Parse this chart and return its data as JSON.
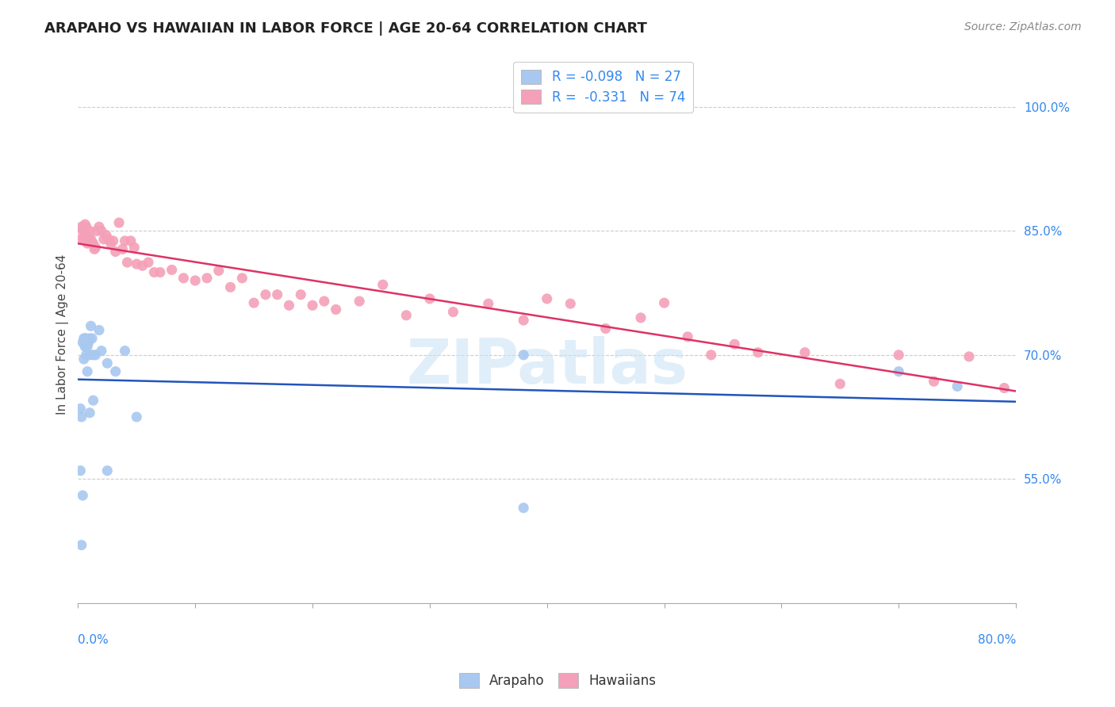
{
  "title": "ARAPAHO VS HAWAIIAN IN LABOR FORCE | AGE 20-64 CORRELATION CHART",
  "source": "Source: ZipAtlas.com",
  "ylabel": "In Labor Force | Age 20-64",
  "ytick_labels": [
    "100.0%",
    "85.0%",
    "70.0%",
    "55.0%"
  ],
  "ytick_values": [
    1.0,
    0.85,
    0.7,
    0.55
  ],
  "legend_line1": "R = -0.098   N = 27",
  "legend_line2": "R =  -0.331   N = 74",
  "legend_labels": [
    "Arapaho",
    "Hawaiians"
  ],
  "arapaho_color": "#a8c8f0",
  "hawaiian_color": "#f4a0b8",
  "arapaho_line_color": "#2255bb",
  "hawaiian_line_color": "#dd3366",
  "watermark": "ZIPatlas",
  "arapaho_x": [
    0.002,
    0.003,
    0.004,
    0.005,
    0.005,
    0.006,
    0.006,
    0.007,
    0.007,
    0.008,
    0.008,
    0.009,
    0.01,
    0.01,
    0.011,
    0.012,
    0.013,
    0.015,
    0.018,
    0.02,
    0.025,
    0.032,
    0.04,
    0.05,
    0.38,
    0.7,
    0.75
  ],
  "arapaho_y": [
    0.635,
    0.625,
    0.715,
    0.695,
    0.72,
    0.72,
    0.71,
    0.72,
    0.7,
    0.71,
    0.68,
    0.715,
    0.72,
    0.7,
    0.735,
    0.72,
    0.7,
    0.7,
    0.73,
    0.705,
    0.69,
    0.68,
    0.705,
    0.625,
    0.7,
    0.68,
    0.662
  ],
  "hawaiian_x": [
    0.002,
    0.003,
    0.004,
    0.005,
    0.005,
    0.006,
    0.006,
    0.007,
    0.008,
    0.009,
    0.01,
    0.01,
    0.011,
    0.012,
    0.013,
    0.014,
    0.015,
    0.016,
    0.018,
    0.02,
    0.022,
    0.024,
    0.026,
    0.028,
    0.03,
    0.032,
    0.035,
    0.038,
    0.04,
    0.042,
    0.045,
    0.048,
    0.05,
    0.055,
    0.06,
    0.065,
    0.07,
    0.08,
    0.09,
    0.1,
    0.11,
    0.12,
    0.13,
    0.14,
    0.15,
    0.16,
    0.17,
    0.18,
    0.19,
    0.2,
    0.21,
    0.22,
    0.24,
    0.26,
    0.28,
    0.3,
    0.32,
    0.35,
    0.38,
    0.4,
    0.42,
    0.45,
    0.48,
    0.5,
    0.52,
    0.54,
    0.56,
    0.58,
    0.62,
    0.65,
    0.7,
    0.73,
    0.76,
    0.79
  ],
  "hawaiian_y": [
    0.84,
    0.855,
    0.85,
    0.84,
    0.855,
    0.858,
    0.848,
    0.855,
    0.835,
    0.84,
    0.85,
    0.84,
    0.84,
    0.835,
    0.835,
    0.828,
    0.83,
    0.85,
    0.855,
    0.85,
    0.84,
    0.845,
    0.84,
    0.835,
    0.838,
    0.825,
    0.86,
    0.828,
    0.838,
    0.812,
    0.838,
    0.83,
    0.81,
    0.808,
    0.812,
    0.8,
    0.8,
    0.803,
    0.793,
    0.79,
    0.793,
    0.802,
    0.782,
    0.793,
    0.763,
    0.773,
    0.773,
    0.76,
    0.773,
    0.76,
    0.765,
    0.755,
    0.765,
    0.785,
    0.748,
    0.768,
    0.752,
    0.762,
    0.742,
    0.768,
    0.762,
    0.732,
    0.745,
    0.763,
    0.722,
    0.7,
    0.713,
    0.703,
    0.703,
    0.665,
    0.7,
    0.668,
    0.698,
    0.66
  ],
  "arapaho_low_x": [
    0.002,
    0.003,
    0.004,
    0.01,
    0.013,
    0.025,
    0.38
  ],
  "arapaho_low_y": [
    0.56,
    0.47,
    0.53,
    0.63,
    0.645,
    0.56,
    0.515
  ],
  "xlim": [
    0.0,
    0.8
  ],
  "ylim": [
    0.4,
    1.05
  ],
  "background_color": "#ffffff",
  "grid_color": "#cccccc"
}
